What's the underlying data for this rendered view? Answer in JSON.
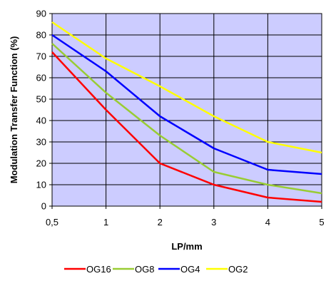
{
  "chart_data": {
    "type": "line",
    "title": "",
    "xlabel": "LP/mm",
    "ylabel": "Modulation Transfer Function (%)",
    "categories": [
      "0,5",
      "1",
      "2",
      "3",
      "4",
      "5"
    ],
    "ylim": [
      0,
      90
    ],
    "yticks": [
      "0",
      "10",
      "20",
      "30",
      "40",
      "50",
      "60",
      "70",
      "80",
      "90"
    ],
    "grid": true,
    "legend_position": "bottom",
    "plot_background": "#ccccff",
    "series": [
      {
        "name": "OG16",
        "color": "#ff0000",
        "values": [
          72,
          45,
          20,
          10,
          4,
          2
        ]
      },
      {
        "name": "OG8",
        "color": "#99cc33",
        "values": [
          76,
          53,
          33,
          16,
          10,
          6
        ]
      },
      {
        "name": "OG4",
        "color": "#0000ff",
        "values": [
          80,
          63,
          42,
          27,
          17,
          15
        ]
      },
      {
        "name": "OG2",
        "color": "#ffff00",
        "values": [
          86,
          69,
          56,
          42,
          30,
          25
        ]
      }
    ]
  }
}
